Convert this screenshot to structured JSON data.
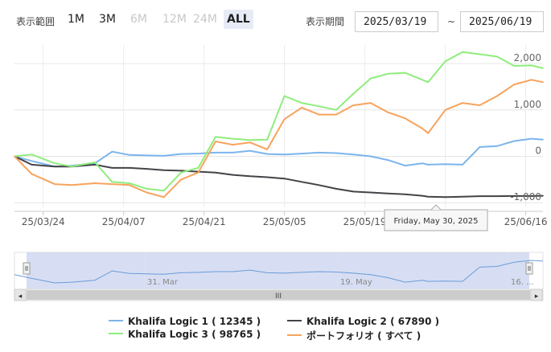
{
  "toolbar": {
    "range_label": "表示範囲",
    "range_buttons": [
      {
        "label": "1M",
        "state": "enabled"
      },
      {
        "label": "3M",
        "state": "enabled"
      },
      {
        "label": "6M",
        "state": "disabled"
      },
      {
        "label": "12M",
        "state": "disabled"
      },
      {
        "label": "24M",
        "state": "disabled"
      },
      {
        "label": "ALL",
        "state": "active"
      }
    ],
    "period_label": "表示期間",
    "from_date": "2025/03/19",
    "separator": "~",
    "to_date": "2025/06/19"
  },
  "tooltip": {
    "text": "Friday, May 30, 2025"
  },
  "navigator": {
    "labels": [
      "31. Mar",
      "19. May",
      "16. ..."
    ],
    "scroll_grip": "III",
    "left_arrow": "◂",
    "right_arrow": "▸"
  },
  "colors": {
    "series1": "#7cb5ec",
    "series2": "#434348",
    "series3": "#90ed7d",
    "series4": "#f7a35c",
    "navigator_mask": "#c9d3ef"
  },
  "chart_data": {
    "type": "line",
    "x_dates": [
      "2025-03-19",
      "2025-03-22",
      "2025-03-26",
      "2025-03-29",
      "2025-04-02",
      "2025-04-05",
      "2025-04-08",
      "2025-04-11",
      "2025-04-14",
      "2025-04-17",
      "2025-04-20",
      "2025-04-23",
      "2025-04-26",
      "2025-04-29",
      "2025-05-02",
      "2025-05-05",
      "2025-05-08",
      "2025-05-11",
      "2025-05-14",
      "2025-05-17",
      "2025-05-20",
      "2025-05-23",
      "2025-05-26",
      "2025-05-29",
      "2025-05-30",
      "2025-06-02",
      "2025-06-05",
      "2025-06-08",
      "2025-06-11",
      "2025-06-14",
      "2025-06-17",
      "2025-06-19"
    ],
    "x_tick_labels": [
      "25/03/24",
      "25/04/07",
      "25/04/21",
      "25/05/05",
      "25/05/19",
      "25/06/02",
      "25/06/16"
    ],
    "x_tick_dates": [
      "2025-03-24",
      "2025-04-07",
      "2025-04-21",
      "2025-05-05",
      "2025-05-19",
      "2025-06-02",
      "2025-06-16"
    ],
    "y_ticks": [
      2000,
      1000,
      0,
      -1000
    ],
    "y_tick_labels": [
      "2,000",
      "1,000",
      "0",
      "-1,000"
    ],
    "ylim": [
      -1100,
      2400
    ],
    "grid": true,
    "legend_position": "bottom",
    "series": [
      {
        "name": "Khalifa Logic 1 ( 12345 )",
        "color": "#7cb5ec",
        "values": [
          0,
          -100,
          -220,
          -200,
          -150,
          100,
          30,
          20,
          10,
          50,
          60,
          80,
          80,
          120,
          50,
          40,
          60,
          80,
          70,
          40,
          0,
          -80,
          -200,
          -150,
          -180,
          -170,
          -180,
          200,
          220,
          330,
          380,
          360
        ]
      },
      {
        "name": "Khalifa Logic 2 ( 67890 )",
        "color": "#434348",
        "values": [
          0,
          -180,
          -220,
          -220,
          -180,
          -250,
          -250,
          -270,
          -300,
          -310,
          -330,
          -350,
          -400,
          -430,
          -450,
          -480,
          -550,
          -620,
          -700,
          -760,
          -780,
          -800,
          -820,
          -850,
          -870,
          -880,
          -870,
          -860,
          -860,
          -855,
          -855,
          -850
        ]
      },
      {
        "name": "Khalifa Logic 3 ( 98765 )",
        "color": "#90ed7d",
        "values": [
          0,
          40,
          -150,
          -220,
          -130,
          -550,
          -580,
          -700,
          -740,
          -350,
          -250,
          420,
          380,
          350,
          360,
          1300,
          1150,
          1080,
          1000,
          1350,
          1680,
          1780,
          1800,
          1650,
          1600,
          2050,
          2250,
          2200,
          2150,
          1950,
          1960,
          1900
        ]
      },
      {
        "name": "ポートフォリオ ( すべて )",
        "color": "#f7a35c",
        "values": [
          0,
          -380,
          -600,
          -620,
          -580,
          -600,
          -620,
          -780,
          -880,
          -500,
          -350,
          320,
          250,
          300,
          150,
          800,
          1050,
          900,
          900,
          1100,
          1150,
          950,
          820,
          600,
          500,
          1000,
          1150,
          1100,
          1300,
          1550,
          1650,
          1600
        ]
      }
    ]
  }
}
